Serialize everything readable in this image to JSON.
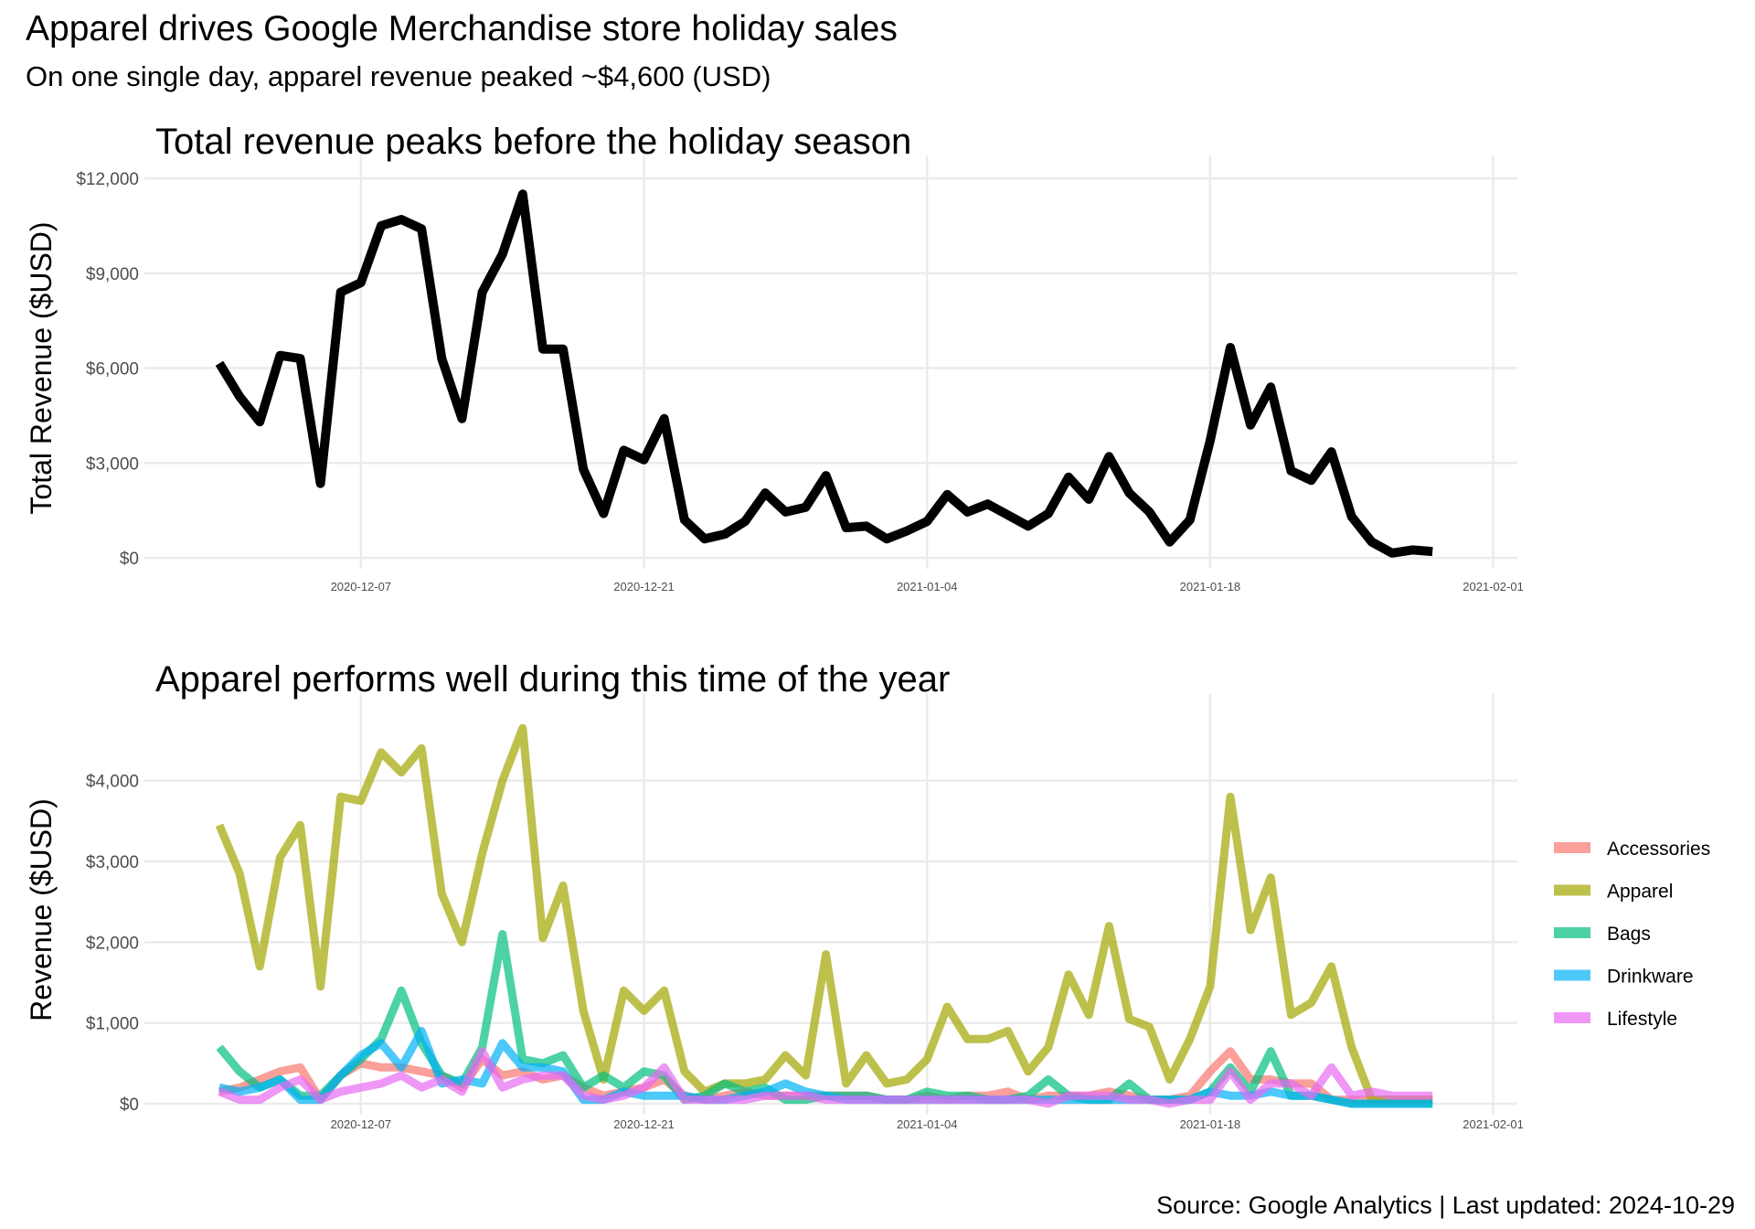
{
  "title": "Apparel drives Google Merchandise store holiday sales",
  "subtitle": "On one single day, apparel revenue peaked ~$4,600 (USD)",
  "caption": "Source: Google Analytics | Last updated: 2024-10-29",
  "chart_data": [
    {
      "type": "line",
      "title": "Total revenue peaks before the holiday season",
      "xlabel": "",
      "ylabel": "Total Revenue ($USD)",
      "x_start": "2020-11-30",
      "x_ticks": [
        "2020-12-07",
        "2020-12-21",
        "2021-01-04",
        "2021-01-18",
        "2021-02-01"
      ],
      "ylim": [
        0,
        12000
      ],
      "y_ticks": [
        0,
        3000,
        6000,
        9000,
        12000
      ],
      "y_tick_labels": [
        "$0",
        "$3,000",
        "$6,000",
        "$9,000",
        "$12,000"
      ],
      "grid": true,
      "series": [
        {
          "color": "#000000",
          "values": [
            6150,
            5100,
            4300,
            6400,
            6300,
            2350,
            8400,
            8700,
            10500,
            10700,
            10400,
            6300,
            4400,
            8400,
            9600,
            11500,
            6600,
            6600,
            2800,
            1400,
            3400,
            3100,
            4400,
            1200,
            600,
            750,
            1150,
            2050,
            1450,
            1600,
            2600,
            950,
            1000,
            600,
            850,
            1150,
            2000,
            1450,
            1700,
            1350,
            1000,
            1400,
            2550,
            1850,
            3200,
            2050,
            1450,
            500,
            1200,
            3700,
            6650,
            4200,
            5400,
            2750,
            2450,
            3350,
            1300,
            500,
            150,
            250,
            200
          ]
        }
      ]
    },
    {
      "type": "line",
      "title": "Apparel performs well during this time of the year",
      "xlabel": "",
      "ylabel": "Revenue ($USD)",
      "x_start": "2020-11-30",
      "x_ticks": [
        "2020-12-07",
        "2020-12-21",
        "2021-01-04",
        "2021-01-18",
        "2021-02-01"
      ],
      "ylim": [
        0,
        4800
      ],
      "y_ticks": [
        0,
        1000,
        2000,
        3000,
        4000
      ],
      "y_tick_labels": [
        "$0",
        "$1,000",
        "$2,000",
        "$3,000",
        "$4,000"
      ],
      "grid": true,
      "legend_position": "right",
      "series": [
        {
          "name": "Accessories",
          "color": "#F8766D",
          "values": [
            150,
            200,
            300,
            400,
            450,
            50,
            350,
            500,
            450,
            450,
            400,
            350,
            200,
            550,
            350,
            400,
            300,
            350,
            200,
            100,
            150,
            200,
            300,
            100,
            50,
            100,
            150,
            100,
            100,
            100,
            100,
            100,
            100,
            50,
            50,
            100,
            50,
            100,
            100,
            150,
            50,
            100,
            100,
            100,
            150,
            100,
            50,
            50,
            100,
            400,
            650,
            300,
            300,
            250,
            250,
            50,
            50,
            50,
            50,
            50,
            50
          ]
        },
        {
          "name": "Apparel",
          "color": "#A3A500",
          "values": [
            3450,
            2850,
            1700,
            3050,
            3450,
            1450,
            3800,
            3750,
            4350,
            4100,
            4400,
            2600,
            2000,
            3100,
            4000,
            4650,
            2050,
            2700,
            1150,
            300,
            1400,
            1150,
            1400,
            400,
            150,
            250,
            250,
            300,
            600,
            350,
            1850,
            250,
            600,
            250,
            300,
            550,
            1200,
            800,
            800,
            900,
            400,
            700,
            1600,
            1100,
            2200,
            1050,
            950,
            300,
            800,
            1450,
            3800,
            2150,
            2800,
            1100,
            1250,
            1700,
            700,
            50,
            50,
            50,
            50
          ]
        },
        {
          "name": "Bags",
          "color": "#00BF7D",
          "values": [
            700,
            400,
            200,
            300,
            100,
            100,
            350,
            550,
            800,
            1400,
            750,
            350,
            250,
            700,
            2100,
            550,
            500,
            600,
            200,
            350,
            200,
            400,
            350,
            50,
            100,
            250,
            150,
            200,
            50,
            50,
            100,
            100,
            100,
            50,
            50,
            150,
            100,
            100,
            50,
            50,
            100,
            300,
            100,
            50,
            50,
            250,
            50,
            50,
            50,
            150,
            450,
            150,
            650,
            100,
            100,
            50,
            0,
            0,
            0,
            0,
            0
          ]
        },
        {
          "name": "Drinkware",
          "color": "#00B0F6",
          "values": [
            200,
            150,
            200,
            300,
            50,
            50,
            350,
            600,
            750,
            450,
            900,
            250,
            300,
            250,
            750,
            450,
            450,
            400,
            50,
            50,
            150,
            100,
            100,
            100,
            50,
            50,
            100,
            150,
            250,
            150,
            100,
            50,
            50,
            50,
            50,
            50,
            50,
            50,
            50,
            50,
            50,
            50,
            50,
            50,
            50,
            50,
            50,
            50,
            50,
            150,
            100,
            100,
            150,
            100,
            100,
            50,
            0,
            0,
            0,
            0,
            0
          ]
        },
        {
          "name": "Lifestyle",
          "color": "#E76BF3",
          "values": [
            150,
            50,
            50,
            200,
            300,
            50,
            150,
            200,
            250,
            350,
            200,
            300,
            150,
            650,
            200,
            300,
            350,
            350,
            100,
            50,
            100,
            200,
            450,
            50,
            50,
            50,
            50,
            100,
            100,
            100,
            50,
            50,
            50,
            50,
            50,
            50,
            50,
            50,
            50,
            50,
            50,
            0,
            100,
            100,
            100,
            50,
            50,
            0,
            50,
            50,
            400,
            50,
            250,
            250,
            100,
            450,
            100,
            150,
            100,
            100,
            100
          ]
        }
      ]
    }
  ]
}
